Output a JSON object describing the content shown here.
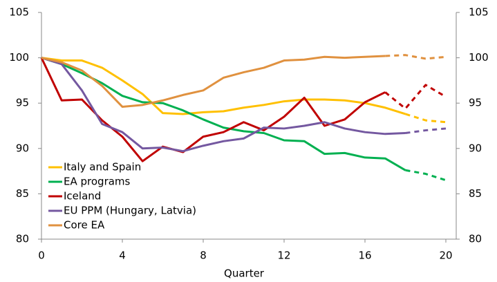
{
  "chart_data": {
    "type": "line",
    "x": [
      0,
      1,
      2,
      3,
      4,
      5,
      6,
      7,
      8,
      9,
      10,
      11,
      12,
      13,
      14,
      15,
      16,
      17,
      18,
      19,
      20
    ],
    "xlabel": "Quarter",
    "xlim": [
      0,
      20
    ],
    "xticks": [
      0,
      4,
      8,
      12,
      16,
      20
    ],
    "ylim": [
      80,
      105
    ],
    "yticks": [
      80,
      85,
      90,
      95,
      100,
      105
    ],
    "y2lim": [
      80,
      105
    ],
    "y2ticks": [
      80,
      85,
      90,
      95,
      100,
      105
    ],
    "legend": "lower left",
    "series": [
      {
        "name": "Italy and Spain",
        "color": "#ffc000",
        "dashed_from": 18,
        "values": [
          100,
          99.7,
          99.7,
          98.9,
          97.5,
          96.0,
          93.9,
          93.8,
          94.0,
          94.1,
          94.5,
          94.8,
          95.2,
          95.4,
          95.4,
          95.3,
          95.0,
          94.5,
          93.8,
          93.1,
          92.9
        ]
      },
      {
        "name": "EA programs",
        "color": "#00b050",
        "dashed_from": 18,
        "values": [
          100,
          99.3,
          98.3,
          97.2,
          95.8,
          95.1,
          95.0,
          94.2,
          93.2,
          92.3,
          91.9,
          91.7,
          90.9,
          90.8,
          89.4,
          89.5,
          89.0,
          88.9,
          87.6,
          87.2,
          86.5
        ]
      },
      {
        "name": "Iceland",
        "color": "#c00000",
        "dashed_from": 17,
        "values": [
          100,
          95.3,
          95.4,
          93.1,
          91.3,
          88.6,
          90.2,
          89.6,
          91.3,
          91.8,
          92.9,
          92.0,
          93.5,
          95.6,
          92.5,
          93.2,
          95.1,
          96.2,
          94.4,
          97.0,
          95.7
        ]
      },
      {
        "name": "EU PPM (Hungary, Latvia)",
        "color": "#7458a0",
        "dashed_from": 18,
        "values": [
          100,
          99.3,
          96.4,
          92.7,
          91.8,
          90.0,
          90.1,
          89.7,
          90.3,
          90.8,
          91.1,
          92.3,
          92.2,
          92.5,
          92.9,
          92.2,
          91.8,
          91.6,
          91.7,
          92.0,
          92.2
        ]
      },
      {
        "name": "Core EA",
        "color": "#e0913f",
        "dashed_from": 17,
        "values": [
          100,
          99.5,
          98.6,
          96.9,
          94.6,
          94.8,
          95.3,
          95.9,
          96.4,
          97.8,
          98.4,
          98.9,
          99.7,
          99.8,
          100.1,
          100.0,
          100.1,
          100.2,
          100.3,
          99.9,
          100.1
        ]
      }
    ]
  }
}
